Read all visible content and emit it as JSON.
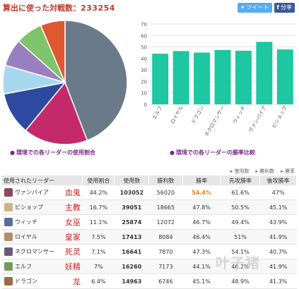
{
  "header": {
    "title_label": "算出に使った対戦数：",
    "title_count": "233254"
  },
  "share": {
    "tweet_label": "ツイート",
    "share_label": "分享",
    "tweet_icon": "twitter-bird-icon",
    "share_icon": "facebook-icon"
  },
  "colors": {
    "bar": "#1cc7a2",
    "caption": "#7b2a8c",
    "title": "#c0392b",
    "highlight": "#e67e22"
  },
  "captions": {
    "pie": "環境での各リーダーの使用割合",
    "bar": "環境での各リーダーの勝率比較"
  },
  "legend": {
    "items": [
      "使用数",
      "勝利数",
      "勝率"
    ]
  },
  "table": {
    "headers": [
      "使用されたリーダー",
      "使用割合",
      "使用数",
      "勝利数",
      "勝率",
      "先攻勝率",
      "後攻勝率"
    ],
    "rows": [
      {
        "leader": "ヴァンパイア",
        "jp": "血鬼",
        "usage": "44.2%",
        "count": "103052",
        "wins": "56020",
        "winrate": "54.4%",
        "first": "61.6%",
        "second": "47%"
      },
      {
        "leader": "ビショップ",
        "jp": "主教",
        "usage": "16.7%",
        "count": "39051",
        "wins": "18665",
        "winrate": "47.8%",
        "first": "50.5%",
        "second": "45.1%"
      },
      {
        "leader": "ウィッチ",
        "jp": "女巫",
        "usage": "11.1%",
        "count": "25874",
        "wins": "12072",
        "winrate": "46.7%",
        "first": "49.4%",
        "second": "43.9%"
      },
      {
        "leader": "ロイヤル",
        "jp": "皇家",
        "usage": "7.5%",
        "count": "17413",
        "wins": "8084",
        "winrate": "46.4%",
        "first": "51%",
        "second": "41.9%"
      },
      {
        "leader": "ネクロマンサー",
        "jp": "死灵",
        "usage": "7.1%",
        "count": "16641",
        "wins": "7870",
        "winrate": "47.3%",
        "first": "54.1%",
        "second": "40.7%"
      },
      {
        "leader": "エルフ",
        "jp": "妖精",
        "usage": "7%",
        "count": "16260",
        "wins": "7173",
        "winrate": "44.1%",
        "first": "46.2%",
        "second": "41.9%"
      },
      {
        "leader": "ドラゴン",
        "jp": "龙",
        "usage": "6.4%",
        "count": "14963",
        "wins": "6746",
        "winrate": "45.1%",
        "first": "48.9%",
        "second": "41.3%"
      }
    ]
  },
  "watermark": "叶子猪",
  "chart_data": [
    {
      "type": "pie",
      "categories": [
        "ヴァンパイア",
        "ビショップ",
        "ウィッチ",
        "ロイヤル",
        "ネクロマンサー",
        "エルフ",
        "ドラゴン"
      ],
      "values": [
        44.2,
        16.7,
        11.1,
        7.5,
        7.1,
        7.0,
        6.4
      ],
      "colors": [
        "#6a7a8a",
        "#c42a6a",
        "#2e4aa0",
        "#a8d8ef",
        "#9a7fc0",
        "#7dc46a",
        "#e05830"
      ],
      "title": "環境での各リーダーの使用割合"
    },
    {
      "type": "bar",
      "categories": [
        "エルフ",
        "ロイヤル",
        "ドラゴン",
        "ネクロマンサー",
        "ウィッチ",
        "ヴァンパイア",
        "ビショップ"
      ],
      "values": [
        44.1,
        46.4,
        45.1,
        47.3,
        46.7,
        54.4,
        47.8
      ],
      "yticks": [
        "0",
        "10",
        "20",
        "30",
        "40",
        "50",
        "60",
        "70"
      ],
      "ylim": [
        0,
        70
      ],
      "grid": true,
      "title": "環境での各リーダーの勝率比較"
    }
  ]
}
